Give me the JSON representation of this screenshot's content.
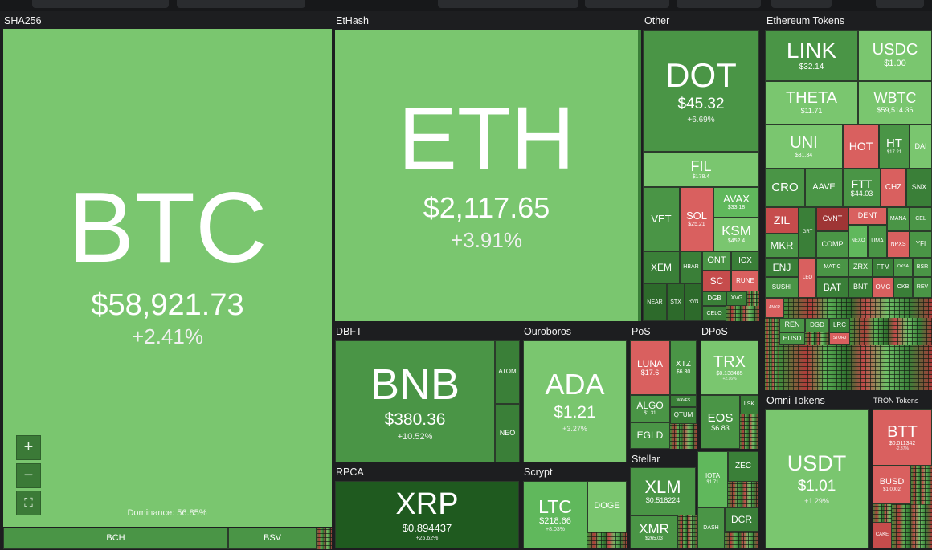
{
  "sectors": {
    "sha256": "SHA256",
    "ethash": "EtHash",
    "other": "Other",
    "eth_tokens": "Ethereum Tokens",
    "dbft": "DBFT",
    "ouroboros": "Ouroboros",
    "pos": "PoS",
    "dpos": "DPoS",
    "rpca": "RPCA",
    "scrypt": "Scrypt",
    "stellar": "Stellar",
    "omni": "Omni Tokens",
    "tron": "TRON Tokens"
  },
  "dominance": "Dominance: 56.85%",
  "zoom": {
    "in": "+",
    "out": "−",
    "fullscreen": "⛶"
  },
  "colors": {
    "strong_green": "#2d6a2b",
    "light_green": "#7ac66f",
    "red": "#d9605f",
    "background": "#1d1e20"
  },
  "coins": {
    "btc": {
      "sym": "BTC",
      "price": "$58,921.73",
      "change": "+2.41%"
    },
    "bch": {
      "sym": "BCH"
    },
    "bsv": {
      "sym": "BSV"
    },
    "eth": {
      "sym": "ETH",
      "price": "$2,117.65",
      "change": "+3.91%"
    },
    "dot": {
      "sym": "DOT",
      "price": "$45.32",
      "change": "+6.69%"
    },
    "fil": {
      "sym": "FIL",
      "price": "$178.4"
    },
    "vet": {
      "sym": "VET"
    },
    "sol": {
      "sym": "SOL",
      "price": "$25.21"
    },
    "avax": {
      "sym": "AVAX",
      "price": "$33.18"
    },
    "ksm": {
      "sym": "KSM",
      "price": "$452.4"
    },
    "xem": {
      "sym": "XEM"
    },
    "hbar": {
      "sym": "HBAR"
    },
    "ont": {
      "sym": "ONT"
    },
    "icx": {
      "sym": "ICX"
    },
    "sc": {
      "sym": "SC"
    },
    "rune": {
      "sym": "RUNE"
    },
    "near": {
      "sym": "NEAR"
    },
    "stx": {
      "sym": "STX"
    },
    "rvn": {
      "sym": "RVN"
    },
    "dgb": {
      "sym": "DGB"
    },
    "xvg": {
      "sym": "XVG"
    },
    "celo": {
      "sym": "CELO"
    },
    "link": {
      "sym": "LINK",
      "price": "$32.14"
    },
    "usdc": {
      "sym": "USDC",
      "price": "$1.00"
    },
    "theta": {
      "sym": "THETA",
      "price": "$11.71"
    },
    "wbtc": {
      "sym": "WBTC",
      "price": "$59,514.36"
    },
    "uni": {
      "sym": "UNI",
      "price": "$31.34"
    },
    "hot": {
      "sym": "HOT"
    },
    "ht": {
      "sym": "HT",
      "price": "$17.21"
    },
    "dai": {
      "sym": "DAI"
    },
    "cro": {
      "sym": "CRO"
    },
    "aave": {
      "sym": "AAVE"
    },
    "ftt": {
      "sym": "FTT",
      "price": "$44.03"
    },
    "chz": {
      "sym": "CHZ"
    },
    "snx": {
      "sym": "SNX"
    },
    "zil": {
      "sym": "ZIL"
    },
    "cvnt": {
      "sym": "CVNT"
    },
    "dent": {
      "sym": "DENT"
    },
    "mana": {
      "sym": "MANA"
    },
    "cel": {
      "sym": "CEL"
    },
    "mkr": {
      "sym": "MKR"
    },
    "grt": {
      "sym": "GRT"
    },
    "comp": {
      "sym": "COMP"
    },
    "uma": {
      "sym": "UMA"
    },
    "nexo": {
      "sym": "NEXO"
    },
    "npxs": {
      "sym": "NPXS"
    },
    "yfi": {
      "sym": "YFI"
    },
    "enj": {
      "sym": "ENJ"
    },
    "leo": {
      "sym": "LEO"
    },
    "matic": {
      "sym": "MATIC"
    },
    "zrx": {
      "sym": "ZRX"
    },
    "ftm": {
      "sym": "FTM"
    },
    "oxsa": {
      "sym": "OXSA"
    },
    "bsr": {
      "sym": "BSR"
    },
    "sushi": {
      "sym": "SUSHI"
    },
    "bat": {
      "sym": "BAT"
    },
    "bnt": {
      "sym": "BNT"
    },
    "omg": {
      "sym": "OMG"
    },
    "okb": {
      "sym": "OKB"
    },
    "rev": {
      "sym": "REV"
    },
    "ankr": {
      "sym": "ANKR"
    },
    "ren": {
      "sym": "REN"
    },
    "dgd": {
      "sym": "DGD"
    },
    "lrc": {
      "sym": "LRC"
    },
    "husd": {
      "sym": "HUSD"
    },
    "storj": {
      "sym": "STORJ"
    },
    "bnb": {
      "sym": "BNB",
      "price": "$380.36",
      "change": "+10.52%"
    },
    "atom": {
      "sym": "ATOM"
    },
    "neo": {
      "sym": "NEO"
    },
    "ada": {
      "sym": "ADA",
      "price": "$1.21",
      "change": "+3.27%"
    },
    "luna": {
      "sym": "LUNA",
      "price": "$17.6"
    },
    "xtz": {
      "sym": "XTZ",
      "price": "$6.30"
    },
    "algo": {
      "sym": "ALGO",
      "price": "$1.31"
    },
    "waves": {
      "sym": "WAVES"
    },
    "qtum": {
      "sym": "QTUM"
    },
    "egld": {
      "sym": "EGLD"
    },
    "trx": {
      "sym": "TRX",
      "price": "$0.138485",
      "change": "+2.16%"
    },
    "eos": {
      "sym": "EOS",
      "price": "$6.83"
    },
    "lsk": {
      "sym": "LSK"
    },
    "xrp": {
      "sym": "XRP",
      "price": "$0.894437",
      "change": "+25.62%"
    },
    "ltc": {
      "sym": "LTC",
      "price": "$218.66",
      "change": "+8.03%"
    },
    "doge": {
      "sym": "DOGE"
    },
    "xlm": {
      "sym": "XLM",
      "price": "$0.518224"
    },
    "xmr": {
      "sym": "XMR",
      "price": "$265.03"
    },
    "iota": {
      "sym": "IOTA",
      "price": "$1.71"
    },
    "zec": {
      "sym": "ZEC"
    },
    "dash": {
      "sym": "DASH"
    },
    "dcr": {
      "sym": "DCR"
    },
    "usdt": {
      "sym": "USDT",
      "price": "$1.01",
      "change": "+1.29%"
    },
    "btt": {
      "sym": "BTT",
      "price": "$0.011342",
      "change": "-2.37%"
    },
    "busd": {
      "sym": "BUSD",
      "price": "$1.0002"
    },
    "cake": {
      "sym": "CAKE"
    }
  }
}
